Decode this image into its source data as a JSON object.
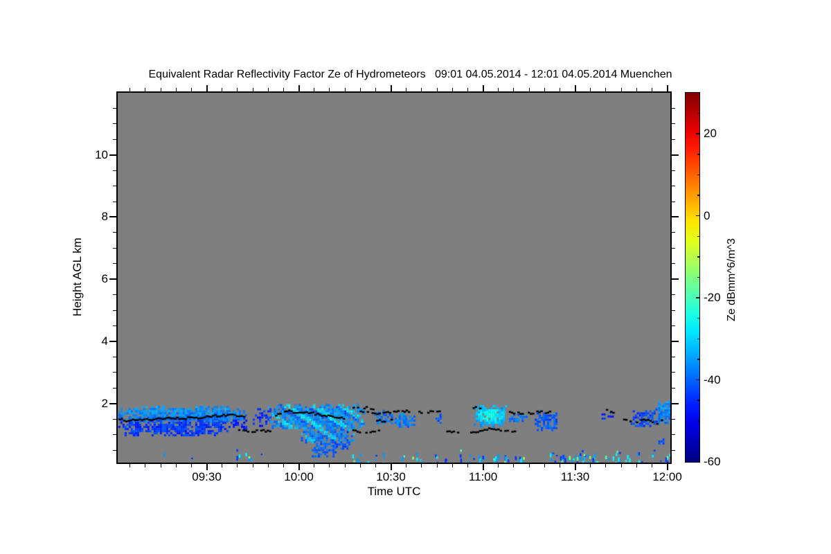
{
  "title": "Equivalent Radar Reflectivity Factor Ze of Hydrometeors   09:01 04.05.2014 - 12:01 04.05.2014 Muenchen",
  "title_parts": {
    "quantity": "Equivalent Radar Reflectivity Factor Ze of Hydrometeors",
    "period": "09:01 04.05.2014 - 12:01 04.05.2014",
    "station": "Muenchen"
  },
  "chart_data": {
    "type": "heatmap",
    "title": "Equivalent Radar Reflectivity Factor Ze of Hydrometeors   09:01 04.05.2014 - 12:01 04.05.2014 Muenchen",
    "xlabel": "Time UTC",
    "ylabel": "Height AGL km",
    "x_range_hours": [
      9.0167,
      12.0167
    ],
    "x_ticks": [
      {
        "hour": 9.5,
        "label": "09:30"
      },
      {
        "hour": 10.0,
        "label": "10:00"
      },
      {
        "hour": 10.5,
        "label": "10:30"
      },
      {
        "hour": 11.0,
        "label": "11:00"
      },
      {
        "hour": 11.5,
        "label": "11:30"
      },
      {
        "hour": 12.0,
        "label": "12:00"
      }
    ],
    "x_minor_interval_hours": 0.0833333,
    "y_range_km": [
      0.1,
      12.0
    ],
    "y_ticks": [
      {
        "km": 2,
        "label": "2"
      },
      {
        "km": 4,
        "label": "4"
      },
      {
        "km": 6,
        "label": "6"
      },
      {
        "km": 8,
        "label": "8"
      },
      {
        "km": 10,
        "label": "10"
      }
    ],
    "y_minor_interval_km": 0.5,
    "background_color": "#7f7f7f",
    "grid": false,
    "colorbar": {
      "label": "Ze dBmm^6/m^3",
      "min": -60,
      "max": 30,
      "ticks": [
        {
          "value": 20,
          "label": "20"
        },
        {
          "value": 0,
          "label": "0"
        },
        {
          "value": -20,
          "label": "-20"
        },
        {
          "value": -40,
          "label": "-40"
        },
        {
          "value": -60,
          "label": "-60"
        }
      ],
      "minor_step": 5,
      "colormap": "jet",
      "position": "right"
    },
    "cloud_patches": [
      {
        "t0": 9.02,
        "t1": 9.71,
        "h0": 1.42,
        "h1": 1.92,
        "ze_db": -37,
        "fill": 0.93,
        "texture": "grad"
      },
      {
        "t0": 9.02,
        "t1": 9.63,
        "h0": 1.0,
        "h1": 1.48,
        "ze_db": -44,
        "fill": 0.78,
        "texture": ""
      },
      {
        "t0": 9.63,
        "t1": 9.72,
        "h0": 1.2,
        "h1": 1.55,
        "ze_db": -46,
        "fill": 0.45,
        "texture": ""
      },
      {
        "t0": 9.75,
        "t1": 9.86,
        "h0": 1.3,
        "h1": 1.85,
        "ze_db": -45,
        "fill": 0.45,
        "texture": ""
      },
      {
        "t0": 9.83,
        "t1": 10.35,
        "h0": 1.2,
        "h1": 1.98,
        "ze_db": -36,
        "fill": 0.96,
        "texture": "streaks"
      },
      {
        "t0": 10.0,
        "t1": 10.3,
        "h0": 0.72,
        "h1": 1.25,
        "ze_db": -38,
        "fill": 0.85,
        "texture": "streaks"
      },
      {
        "t0": 10.07,
        "t1": 10.2,
        "h0": 0.3,
        "h1": 0.8,
        "ze_db": -40,
        "fill": 0.7,
        "texture": ""
      },
      {
        "t0": 10.19,
        "t1": 10.27,
        "h0": 0.52,
        "h1": 0.85,
        "ze_db": -41,
        "fill": 0.6,
        "texture": ""
      },
      {
        "t0": 10.41,
        "t1": 10.51,
        "h0": 1.38,
        "h1": 1.8,
        "ze_db": -39,
        "fill": 0.65,
        "texture": ""
      },
      {
        "t0": 10.52,
        "t1": 10.63,
        "h0": 1.28,
        "h1": 1.75,
        "ze_db": -38,
        "fill": 0.68,
        "texture": ""
      },
      {
        "t0": 10.73,
        "t1": 10.79,
        "h0": 1.3,
        "h1": 1.68,
        "ze_db": -41,
        "fill": 0.6,
        "texture": ""
      },
      {
        "t0": 10.95,
        "t1": 11.12,
        "h0": 1.28,
        "h1": 1.95,
        "ze_db": -34,
        "fill": 0.95,
        "texture": "core"
      },
      {
        "t0": 11.13,
        "t1": 11.24,
        "h0": 1.45,
        "h1": 1.67,
        "ze_db": -39,
        "fill": 0.6,
        "texture": ""
      },
      {
        "t0": 11.28,
        "t1": 11.4,
        "h0": 1.15,
        "h1": 1.78,
        "ze_db": -41,
        "fill": 0.75,
        "texture": ""
      },
      {
        "t0": 11.62,
        "t1": 11.71,
        "h0": 1.45,
        "h1": 1.75,
        "ze_db": -46,
        "fill": 0.35,
        "texture": ""
      },
      {
        "t0": 11.79,
        "t1": 11.94,
        "h0": 1.3,
        "h1": 1.85,
        "ze_db": -43,
        "fill": 0.55,
        "texture": ""
      },
      {
        "t0": 11.94,
        "t1": 12.02,
        "h0": 1.35,
        "h1": 2.08,
        "ze_db": -37,
        "fill": 0.95,
        "texture": "grad"
      },
      {
        "t0": 11.94,
        "t1": 11.98,
        "h0": 0.7,
        "h1": 0.88,
        "ze_db": -43,
        "fill": 0.5,
        "texture": ""
      }
    ],
    "cloud_base_segments": [
      {
        "points_time_km": [
          [
            9.02,
            1.55
          ],
          [
            9.07,
            1.46
          ],
          [
            9.13,
            1.53
          ],
          [
            9.22,
            1.52
          ],
          [
            9.3,
            1.55
          ],
          [
            9.38,
            1.56
          ],
          [
            9.46,
            1.58
          ],
          [
            9.54,
            1.63
          ],
          [
            9.62,
            1.66
          ],
          [
            9.71,
            1.62
          ]
        ],
        "gap": 0.05
      },
      {
        "points_time_km": [
          [
            9.67,
            1.16
          ],
          [
            9.73,
            1.1
          ],
          [
            9.79,
            1.17
          ],
          [
            9.85,
            1.13
          ]
        ],
        "gap": 0.4
      },
      {
        "points_time_km": [
          [
            9.87,
            1.65
          ],
          [
            9.93,
            1.79
          ],
          [
            9.99,
            1.72
          ],
          [
            10.06,
            1.74
          ],
          [
            10.12,
            1.63
          ],
          [
            10.19,
            1.6
          ],
          [
            10.25,
            1.55
          ]
        ],
        "gap": 0.08
      },
      {
        "points_time_km": [
          [
            10.28,
            1.88
          ],
          [
            10.35,
            1.9
          ],
          [
            10.41,
            1.85
          ]
        ],
        "gap": 0.45
      },
      {
        "points_time_km": [
          [
            10.29,
            1.16
          ],
          [
            10.36,
            1.1
          ],
          [
            10.44,
            1.15
          ]
        ],
        "gap": 0.4
      },
      {
        "points_time_km": [
          [
            10.33,
            1.76
          ],
          [
            10.42,
            1.71
          ],
          [
            10.5,
            1.74
          ],
          [
            10.58,
            1.78
          ],
          [
            10.66,
            1.74
          ],
          [
            10.77,
            1.77
          ]
        ],
        "gap": 0.35
      },
      {
        "points_time_km": [
          [
            10.42,
            1.5
          ],
          [
            10.46,
            1.43
          ],
          [
            10.51,
            1.5
          ]
        ],
        "gap": 0.1
      },
      {
        "points_time_km": [
          [
            10.8,
            1.13
          ],
          [
            10.87,
            1.1
          ],
          [
            10.9,
            1.14
          ]
        ],
        "gap": 0.5
      },
      {
        "points_time_km": [
          [
            10.93,
            1.1
          ],
          [
            10.99,
            1.13
          ],
          [
            11.04,
            1.24
          ],
          [
            11.09,
            1.18
          ],
          [
            11.14,
            1.12
          ],
          [
            11.18,
            1.13
          ]
        ],
        "gap": 0.12
      },
      {
        "points_time_km": [
          [
            10.92,
            1.92
          ],
          [
            10.99,
            1.87
          ]
        ],
        "gap": 0.45
      },
      {
        "points_time_km": [
          [
            11.14,
            1.73
          ],
          [
            11.22,
            1.7
          ],
          [
            11.3,
            1.76
          ],
          [
            11.38,
            1.73
          ]
        ],
        "gap": 0.35
      },
      {
        "points_time_km": [
          [
            11.62,
            1.88
          ],
          [
            11.69,
            1.78
          ],
          [
            11.76,
            1.52
          ],
          [
            11.83,
            1.44
          ],
          [
            11.89,
            1.52
          ],
          [
            11.94,
            1.4
          ],
          [
            11.99,
            1.55
          ]
        ],
        "gap": 0.5
      }
    ],
    "ground_clutter_clusters": [
      {
        "t0": 9.25,
        "t1": 9.27,
        "count": 1
      },
      {
        "t0": 9.4,
        "t1": 9.42,
        "count": 1
      },
      {
        "t0": 9.66,
        "t1": 9.74,
        "count": 9
      },
      {
        "t0": 9.78,
        "t1": 9.8,
        "count": 1
      },
      {
        "t0": 10.28,
        "t1": 10.34,
        "count": 6
      },
      {
        "t0": 10.37,
        "t1": 10.43,
        "count": 5
      },
      {
        "t0": 10.45,
        "t1": 10.48,
        "count": 2
      },
      {
        "t0": 10.55,
        "t1": 10.58,
        "count": 3
      },
      {
        "t0": 10.6,
        "t1": 10.67,
        "count": 5
      },
      {
        "t0": 10.73,
        "t1": 10.77,
        "count": 3
      },
      {
        "t0": 10.79,
        "t1": 10.81,
        "count": 2
      },
      {
        "t0": 10.85,
        "t1": 10.88,
        "count": 3
      },
      {
        "t0": 10.92,
        "t1": 10.95,
        "count": 3
      },
      {
        "t0": 10.97,
        "t1": 11.02,
        "count": 5
      },
      {
        "t0": 11.04,
        "t1": 11.09,
        "count": 7
      },
      {
        "t0": 11.1,
        "t1": 11.14,
        "count": 5
      },
      {
        "t0": 11.16,
        "t1": 11.22,
        "count": 6
      },
      {
        "t0": 11.36,
        "t1": 11.45,
        "count": 12
      },
      {
        "t0": 11.45,
        "t1": 11.53,
        "count": 12
      },
      {
        "t0": 11.53,
        "t1": 11.64,
        "count": 15
      },
      {
        "t0": 11.65,
        "t1": 11.8,
        "count": 13
      },
      {
        "t0": 11.83,
        "t1": 11.87,
        "count": 4
      },
      {
        "t0": 11.9,
        "t1": 11.93,
        "count": 3
      },
      {
        "t0": 11.96,
        "t1": 12.01,
        "count": 7
      }
    ]
  }
}
